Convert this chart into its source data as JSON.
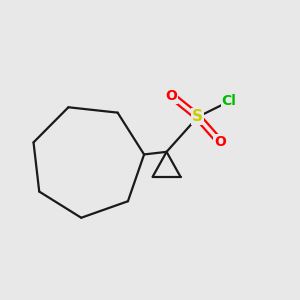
{
  "background_color": "#e8e8e8",
  "bond_color": "#1a1a1a",
  "S_color": "#cccc00",
  "O_color": "#ff0000",
  "Cl_color": "#00bb00",
  "line_width": 1.6,
  "figsize": [
    3.0,
    3.0
  ],
  "dpi": 100,
  "xlim": [
    0.1,
    0.9
  ],
  "ylim": [
    0.2,
    0.85
  ]
}
